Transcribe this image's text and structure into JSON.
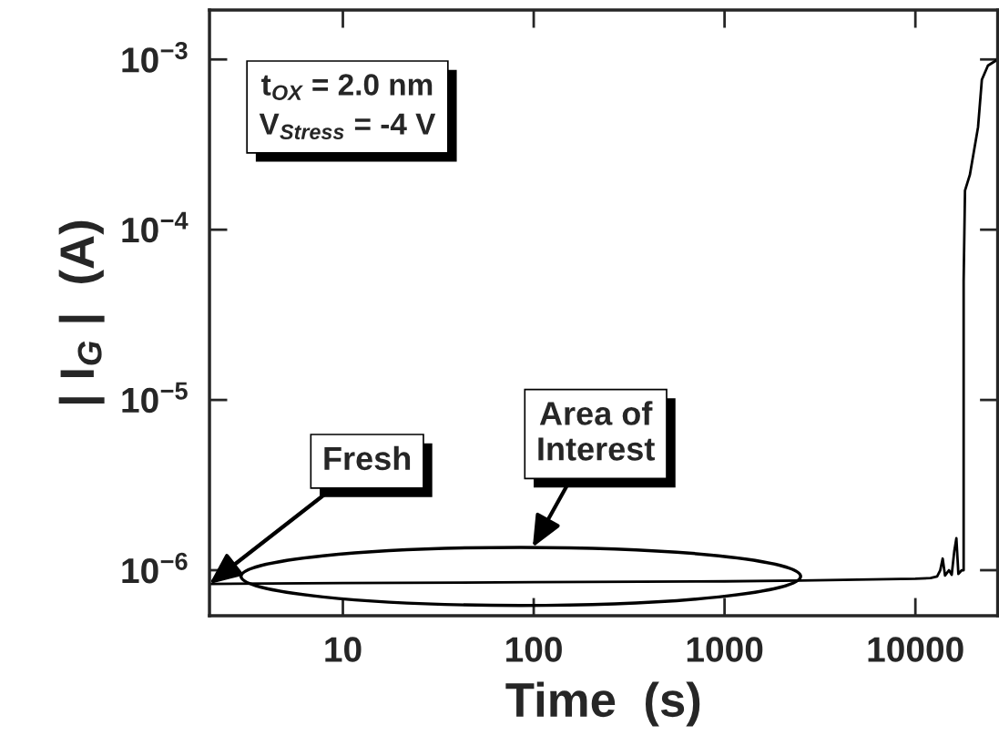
{
  "chart_data": {
    "type": "line",
    "xlabel": "Time  (s)",
    "ylabel": "| I$_{G}$ |  (A)",
    "log": "xy",
    "xlim": [
      2,
      27000
    ],
    "ylim": [
      5.4e-07,
      0.00195
    ],
    "xticks": [
      10,
      100,
      1000,
      10000
    ],
    "yticks": [
      {
        "value": 1e-06,
        "label": "10$^{−6}$"
      },
      {
        "value": 1e-05,
        "label": "10$^{−5}$"
      },
      {
        "value": 0.0001,
        "label": "10$^{−4}$"
      },
      {
        "value": 0.001,
        "label": "10$^{−3}$"
      }
    ],
    "series": [
      {
        "color": "#000000",
        "x": [
          2,
          10,
          100,
          1000,
          2500,
          5000,
          10000,
          12000,
          13000,
          13500,
          13900,
          14300,
          15000,
          15500,
          16000,
          16400,
          16800,
          17500,
          17900,
          17900,
          18200,
          19300,
          21300,
          22300,
          24000,
          27000
        ],
        "values": [
          8.3e-07,
          8.4e-07,
          8.5e-07,
          8.6e-07,
          8.7e-07,
          8.8e-07,
          8.9e-07,
          9e-07,
          9.2e-07,
          1e-06,
          1.17e-06,
          9.3e-07,
          1e-06,
          9.4e-07,
          1.3e-06,
          1.54e-06,
          9.5e-07,
          1e-06,
          1e-06,
          5e-05,
          0.00017,
          0.00021,
          0.0004,
          0.00076,
          0.00092,
          0.001
        ]
      }
    ],
    "annotations": [
      {
        "text": "Fresh",
        "x": 2,
        "y": 8.3e-07
      },
      "Area of\nInterest",
      "t$_{OX}$ = 2.0 nm",
      "V$_{Stress}$ = -4 V"
    ]
  }
}
